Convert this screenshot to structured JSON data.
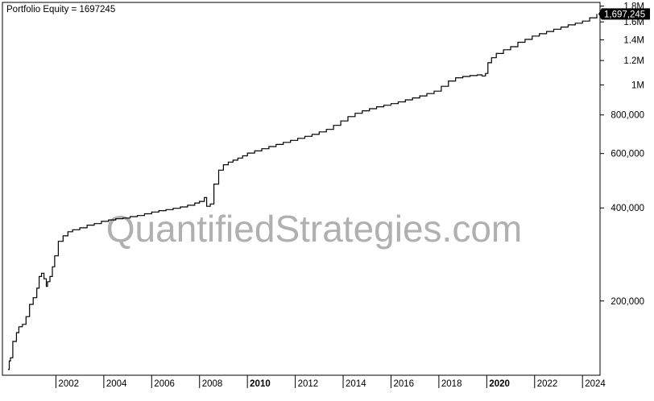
{
  "chart_data": {
    "type": "line",
    "title": "Portfolio Equity = 1697245",
    "watermark": "QuantifiedStrategies.com",
    "y_scale": "log",
    "ylim": [
      115000,
      1850000
    ],
    "xlim": [
      2000.0,
      2024.7
    ],
    "last_value_label": "1,697,245",
    "grid": false,
    "legend": "none",
    "colors": {
      "line": "#000000",
      "axis": "#000000",
      "watermark": "#b0b0b0",
      "badge_bg": "#000000",
      "badge_text": "#ffffff"
    },
    "y_ticks": [
      {
        "value": 1800000,
        "label": "1.8M"
      },
      {
        "value": 1600000,
        "label": "1.6M"
      },
      {
        "value": 1400000,
        "label": "1.4M"
      },
      {
        "value": 1200000,
        "label": "1.2M"
      },
      {
        "value": 1000000,
        "label": "1M"
      },
      {
        "value": 800000,
        "label": "800,000"
      },
      {
        "value": 600000,
        "label": "600,000"
      },
      {
        "value": 400000,
        "label": "400,000"
      },
      {
        "value": 200000,
        "label": "200,000"
      }
    ],
    "x_ticks": [
      {
        "value": 2002,
        "label": "2002",
        "bold": false
      },
      {
        "value": 2004,
        "label": "2004",
        "bold": false
      },
      {
        "value": 2006,
        "label": "2006",
        "bold": false
      },
      {
        "value": 2008,
        "label": "2008",
        "bold": false
      },
      {
        "value": 2010,
        "label": "2010",
        "bold": true
      },
      {
        "value": 2012,
        "label": "2012",
        "bold": false
      },
      {
        "value": 2014,
        "label": "2014",
        "bold": false
      },
      {
        "value": 2016,
        "label": "2016",
        "bold": false
      },
      {
        "value": 2018,
        "label": "2018",
        "bold": false
      },
      {
        "value": 2020,
        "label": "2020",
        "bold": true
      },
      {
        "value": 2022,
        "label": "2022",
        "bold": false
      },
      {
        "value": 2024,
        "label": "2024",
        "bold": false
      }
    ],
    "series": [
      {
        "x": [
          2000.0,
          2000.05,
          2000.1,
          2000.2,
          2000.35,
          2000.45,
          2000.6,
          2000.75,
          2000.9,
          2001.05,
          2001.2,
          2001.3,
          2001.4,
          2001.5,
          2001.6,
          2001.65,
          2001.75,
          2001.85,
          2001.95,
          2002.1,
          2002.3,
          2002.5,
          2002.7,
          2003.0,
          2003.3,
          2003.6,
          2003.9,
          2004.2,
          2004.5,
          2004.8,
          2005.1,
          2005.4,
          2005.7,
          2006.0,
          2006.3,
          2006.6,
          2006.9,
          2007.2,
          2007.5,
          2007.8,
          2008.0,
          2008.2,
          2008.3,
          2008.45,
          2008.6,
          2008.8,
          2009.0,
          2009.2,
          2009.4,
          2009.6,
          2009.8,
          2010.0,
          2010.3,
          2010.6,
          2010.9,
          2011.2,
          2011.5,
          2011.8,
          2012.1,
          2012.4,
          2012.7,
          2013.0,
          2013.3,
          2013.6,
          2013.9,
          2014.2,
          2014.5,
          2014.8,
          2015.1,
          2015.4,
          2015.7,
          2016.0,
          2016.3,
          2016.6,
          2016.9,
          2017.2,
          2017.5,
          2017.8,
          2018.1,
          2018.4,
          2018.7,
          2019.0,
          2019.3,
          2019.6,
          2019.8,
          2019.95,
          2020.05,
          2020.2,
          2020.4,
          2020.7,
          2021.0,
          2021.3,
          2021.6,
          2021.9,
          2022.2,
          2022.5,
          2022.8,
          2023.1,
          2023.4,
          2023.7,
          2024.0,
          2024.3,
          2024.6
        ],
        "y": [
          120000,
          128000,
          131000,
          148000,
          158000,
          165000,
          168000,
          178000,
          195000,
          205000,
          220000,
          240000,
          246000,
          236000,
          223000,
          231000,
          240000,
          258000,
          280000,
          312000,
          325000,
          335000,
          340000,
          345000,
          352000,
          356000,
          362000,
          366000,
          369000,
          371000,
          375000,
          378000,
          383000,
          388000,
          392000,
          395000,
          399000,
          403000,
          408000,
          415000,
          420000,
          432000,
          405000,
          412000,
          478000,
          530000,
          552000,
          563000,
          571000,
          580000,
          590000,
          602000,
          612000,
          622000,
          632000,
          642000,
          652000,
          662000,
          672000,
          682000,
          692000,
          705000,
          718000,
          740000,
          765000,
          790000,
          810000,
          825000,
          838000,
          850000,
          860000,
          870000,
          882000,
          895000,
          908000,
          922000,
          938000,
          955000,
          990000,
          1030000,
          1055000,
          1065000,
          1072000,
          1078000,
          1070000,
          1090000,
          1180000,
          1225000,
          1265000,
          1300000,
          1330000,
          1375000,
          1405000,
          1440000,
          1465000,
          1490000,
          1515000,
          1540000,
          1565000,
          1585000,
          1610000,
          1650000,
          1697245
        ]
      }
    ]
  }
}
